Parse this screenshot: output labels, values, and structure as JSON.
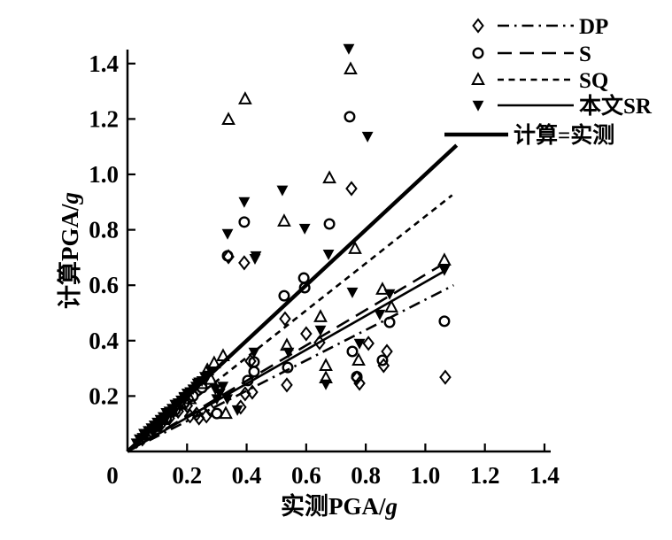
{
  "figure": {
    "background": "#ffffff",
    "ink": "#000000"
  },
  "chart_data": {
    "type": "scatter",
    "title": "",
    "xlabel": "实测PGA/g",
    "ylabel": "计算PGA/g",
    "xlim": [
      0,
      1.4
    ],
    "ylim": [
      0,
      1.45
    ],
    "grid": false,
    "legend_position": "top-right",
    "x_ticks": [
      0,
      0.2,
      0.4,
      0.6,
      0.8,
      1.0,
      1.2,
      1.4
    ],
    "x_tick_labels": [
      "0",
      "0.2",
      "0.4",
      "0.6",
      "0.8",
      "1.0",
      "1.2",
      "1.4"
    ],
    "y_ticks": [
      0.2,
      0.4,
      0.6,
      0.8,
      1.0,
      1.2,
      1.4
    ],
    "y_tick_labels": [
      "0.2",
      "0.4",
      "0.6",
      "0.8",
      "1.0",
      "1.2",
      "1.4"
    ],
    "series": [
      {
        "name": "DP",
        "marker": "diamond-open",
        "line_style": "dash-dot",
        "points": [
          [
            0.05,
            0.045
          ],
          [
            0.08,
            0.072
          ],
          [
            0.11,
            0.095
          ],
          [
            0.14,
            0.12
          ],
          [
            0.17,
            0.145
          ],
          [
            0.2,
            0.165
          ],
          [
            0.21,
            0.128
          ],
          [
            0.232,
            0.135
          ],
          [
            0.24,
            0.121
          ],
          [
            0.265,
            0.128
          ],
          [
            0.276,
            0.153
          ],
          [
            0.38,
            0.16
          ],
          [
            0.395,
            0.208
          ],
          [
            0.419,
            0.214
          ],
          [
            0.413,
            0.326
          ],
          [
            0.535,
            0.24
          ],
          [
            0.529,
            0.479
          ],
          [
            0.6,
            0.425
          ],
          [
            0.645,
            0.393
          ],
          [
            0.339,
            0.703
          ],
          [
            0.392,
            0.681
          ],
          [
            0.752,
            0.949
          ],
          [
            0.77,
            0.265
          ],
          [
            0.779,
            0.246
          ],
          [
            0.809,
            0.39
          ],
          [
            0.871,
            0.361
          ],
          [
            0.86,
            0.31
          ],
          [
            1.067,
            0.268
          ]
        ]
      },
      {
        "name": "S",
        "marker": "circle-open",
        "line_style": "long-dash",
        "points": [
          [
            0.07,
            0.065
          ],
          [
            0.1,
            0.095
          ],
          [
            0.13,
            0.12
          ],
          [
            0.16,
            0.15
          ],
          [
            0.19,
            0.175
          ],
          [
            0.22,
            0.2
          ],
          [
            0.25,
            0.23
          ],
          [
            0.3,
            0.137
          ],
          [
            0.404,
            0.256
          ],
          [
            0.425,
            0.288
          ],
          [
            0.425,
            0.323
          ],
          [
            0.538,
            0.303
          ],
          [
            0.526,
            0.562
          ],
          [
            0.592,
            0.626
          ],
          [
            0.595,
            0.591
          ],
          [
            0.755,
            0.361
          ],
          [
            0.856,
            0.329
          ],
          [
            0.88,
            0.466
          ],
          [
            1.064,
            0.47
          ],
          [
            0.336,
            0.706
          ],
          [
            0.392,
            0.828
          ],
          [
            0.678,
            0.821
          ],
          [
            0.746,
            1.208
          ],
          [
            0.77,
            0.27
          ]
        ]
      },
      {
        "name": "SQ",
        "marker": "triangle-up-open",
        "line_style": "short-dash",
        "points": [
          [
            0.06,
            0.065
          ],
          [
            0.09,
            0.09
          ],
          [
            0.12,
            0.115
          ],
          [
            0.15,
            0.145
          ],
          [
            0.18,
            0.17
          ],
          [
            0.21,
            0.19
          ],
          [
            0.25,
            0.245
          ],
          [
            0.28,
            0.26
          ],
          [
            0.268,
            0.294
          ],
          [
            0.291,
            0.319
          ],
          [
            0.321,
            0.345
          ],
          [
            0.33,
            0.137
          ],
          [
            0.535,
            0.383
          ],
          [
            0.648,
            0.486
          ],
          [
            0.666,
            0.31
          ],
          [
            0.666,
            0.265
          ],
          [
            0.776,
            0.329
          ],
          [
            0.856,
            0.585
          ],
          [
            0.886,
            0.521
          ],
          [
            0.764,
            0.732
          ],
          [
            1.064,
            0.69
          ],
          [
            0.526,
            0.831
          ],
          [
            0.678,
            0.987
          ],
          [
            0.339,
            1.198
          ],
          [
            0.395,
            1.272
          ],
          [
            0.749,
            1.38
          ]
        ]
      },
      {
        "name": "本文SR",
        "marker": "triangle-down-filled",
        "line_style": "solid-thin",
        "points": [
          [
            0.03,
            0.03
          ],
          [
            0.04,
            0.045
          ],
          [
            0.05,
            0.05
          ],
          [
            0.055,
            0.065
          ],
          [
            0.06,
            0.055
          ],
          [
            0.07,
            0.075
          ],
          [
            0.08,
            0.085
          ],
          [
            0.085,
            0.07
          ],
          [
            0.09,
            0.095
          ],
          [
            0.1,
            0.105
          ],
          [
            0.105,
            0.09
          ],
          [
            0.11,
            0.115
          ],
          [
            0.12,
            0.125
          ],
          [
            0.125,
            0.11
          ],
          [
            0.13,
            0.14
          ],
          [
            0.14,
            0.145
          ],
          [
            0.15,
            0.155
          ],
          [
            0.155,
            0.14
          ],
          [
            0.16,
            0.17
          ],
          [
            0.17,
            0.175
          ],
          [
            0.18,
            0.185
          ],
          [
            0.19,
            0.195
          ],
          [
            0.19,
            0.198
          ],
          [
            0.2,
            0.21
          ],
          [
            0.21,
            0.215
          ],
          [
            0.22,
            0.225
          ],
          [
            0.23,
            0.235
          ],
          [
            0.24,
            0.25
          ],
          [
            0.25,
            0.255
          ],
          [
            0.26,
            0.27
          ],
          [
            0.27,
            0.275
          ],
          [
            0.28,
            0.29
          ],
          [
            0.295,
            0.225
          ],
          [
            0.3,
            0.19
          ],
          [
            0.31,
            0.21
          ],
          [
            0.32,
            0.235
          ],
          [
            0.335,
            0.19
          ],
          [
            0.235,
            0.246
          ],
          [
            0.369,
            0.15
          ],
          [
            0.425,
            0.358
          ],
          [
            0.541,
            0.358
          ],
          [
            0.648,
            0.438
          ],
          [
            0.666,
            0.243
          ],
          [
            0.755,
            0.575
          ],
          [
            0.779,
            0.39
          ],
          [
            0.847,
            0.495
          ],
          [
            0.88,
            0.569
          ],
          [
            1.064,
            0.655
          ],
          [
            0.428,
            0.696
          ],
          [
            0.431,
            0.706
          ],
          [
            0.675,
            0.712
          ],
          [
            0.336,
            0.786
          ],
          [
            0.392,
            0.901
          ],
          [
            0.52,
            0.943
          ],
          [
            0.595,
            0.805
          ],
          [
            0.743,
            1.454
          ],
          [
            0.806,
            1.137
          ]
        ]
      }
    ],
    "fit_lines": [
      {
        "series": "DP",
        "style": "dash-dot",
        "x1": 0,
        "y1": 0,
        "x2": 1.095,
        "y2": 0.6
      },
      {
        "series": "S",
        "style": "long-dash",
        "x1": 0,
        "y1": 0,
        "x2": 1.05,
        "y2": 0.67
      },
      {
        "series": "SQ",
        "style": "short-dash",
        "x1": 0,
        "y1": 0,
        "x2": 1.09,
        "y2": 0.925
      },
      {
        "series": "本文SR",
        "style": "solid-thin",
        "x1": 0,
        "y1": 0,
        "x2": 1.066,
        "y2": 0.652
      },
      {
        "series": "计算=实测",
        "style": "solid-thick",
        "x1": 0,
        "y1": 0,
        "x2": 1.105,
        "y2": 1.105
      }
    ],
    "legend": [
      {
        "label": "DP",
        "marker": "diamond-open",
        "line": "dash-dot"
      },
      {
        "label": "S",
        "marker": "circle-open",
        "line": "long-dash"
      },
      {
        "label": "SQ",
        "marker": "triangle-up-open",
        "line": "short-dash"
      },
      {
        "label": "本文SR",
        "marker": "triangle-down-filled",
        "line": "solid-thin"
      },
      {
        "label": "计算=实测",
        "marker": "none",
        "line": "solid-thick"
      }
    ]
  }
}
